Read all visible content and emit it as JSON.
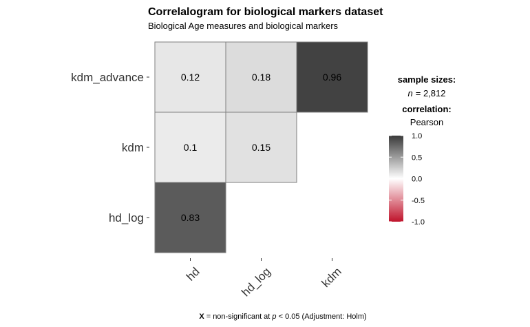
{
  "chart_data": {
    "type": "heatmap",
    "title": "Correlalogram for biological markers dataset",
    "subtitle": "Biological Age measures and biological markers",
    "x_categories": [
      "hd",
      "hd_log",
      "kdm"
    ],
    "y_categories": [
      "kdm_advance",
      "kdm",
      "hd_log"
    ],
    "cells": [
      {
        "x": "hd",
        "y": "kdm_advance",
        "value": 0.12,
        "label": "0.12"
      },
      {
        "x": "hd_log",
        "y": "kdm_advance",
        "value": 0.18,
        "label": "0.18"
      },
      {
        "x": "kdm",
        "y": "kdm_advance",
        "value": 0.96,
        "label": "0.96"
      },
      {
        "x": "hd",
        "y": "kdm",
        "value": 0.1,
        "label": "0.1"
      },
      {
        "x": "hd_log",
        "y": "kdm",
        "value": 0.15,
        "label": "0.15"
      },
      {
        "x": "hd",
        "y": "hd_log",
        "value": 0.83,
        "label": "0.83"
      }
    ],
    "legend": {
      "sample_sizes_title": "sample sizes:",
      "n_symbol": "n",
      "n_value": "= 2,812",
      "correlation_title": "correlation:",
      "correlation_method": "Pearson",
      "ticks": [
        {
          "value": 1.0,
          "label": "1.0"
        },
        {
          "value": 0.5,
          "label": "0.5"
        },
        {
          "value": 0.0,
          "label": "0.0"
        },
        {
          "value": -0.5,
          "label": "-0.5"
        },
        {
          "value": -1.0,
          "label": "-1.0"
        }
      ],
      "range": [
        -1.0,
        1.0
      ],
      "colors": {
        "low": "#C0132B",
        "mid": "#FFFFFF",
        "high": "#3A3A3A"
      }
    },
    "caption": {
      "symbol": "X",
      "text_before_p": " = non-significant at ",
      "p_symbol": "p",
      "text_after_p": " < 0.05 (Adjustment: Holm)"
    }
  }
}
